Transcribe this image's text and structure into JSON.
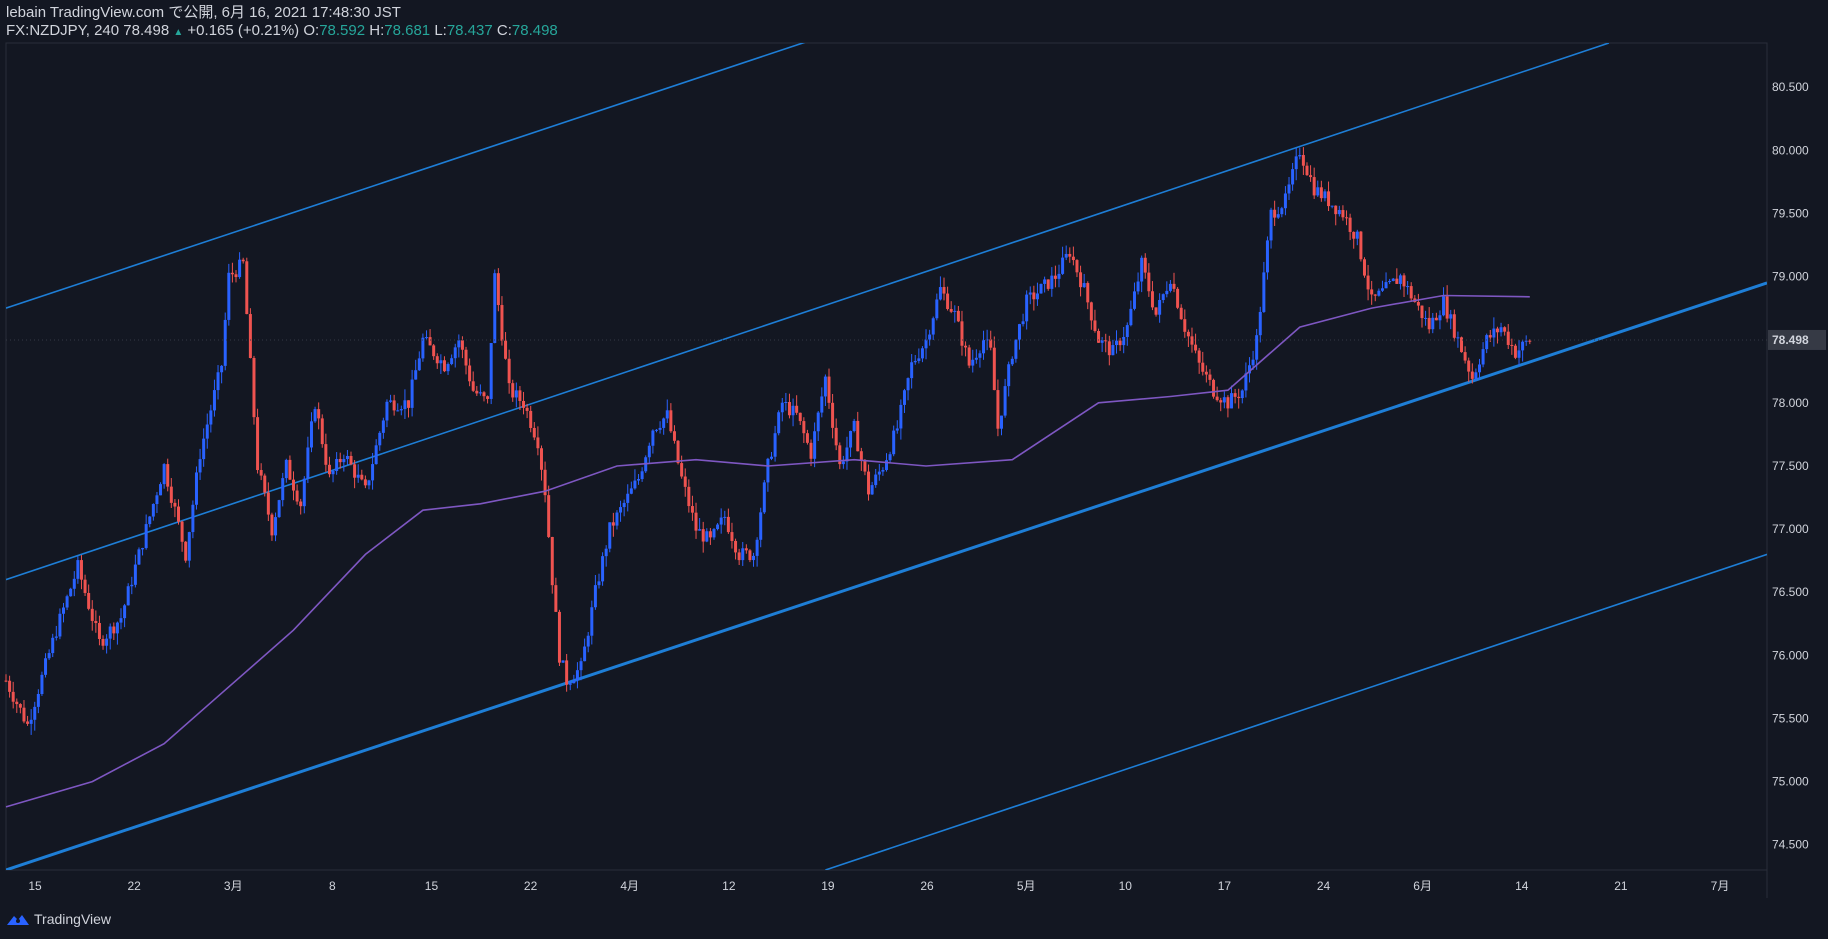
{
  "header": {
    "line1": "lebain TradingView.com で公開, 6月 16, 2021 17:48:30 JST",
    "symbol": "FX:NZDJPY, 240",
    "last": "78.498",
    "change_arrow": "▲",
    "change": "+0.165 (+0.21%)",
    "o_label": "O:",
    "o_value": "78.592",
    "h_label": "H:",
    "h_value": "78.681",
    "l_label": "L:",
    "l_value": "78.437",
    "c_label": "C:",
    "c_value": "78.498"
  },
  "brand": {
    "label": "TradingView",
    "icon": "tradingview-logo-icon"
  },
  "colors": {
    "background": "#131722",
    "candle_up": "#2962ff",
    "candle_down": "#ef5350",
    "channel": "#1e7ed6",
    "moving_average": "#7e57c2",
    "price_tag": "#363a45"
  },
  "chart_data": {
    "type": "candlestick",
    "symbol": "FX:NZDJPY",
    "interval": "240",
    "y_axis": {
      "ticks": [
        "80.500",
        "80.000",
        "79.500",
        "79.000",
        "78.500",
        "78.000",
        "77.500",
        "77.000",
        "76.500",
        "76.000",
        "75.500",
        "75.000",
        "74.500"
      ],
      "range": [
        74.3,
        80.85
      ],
      "current_price_label": "78.498"
    },
    "x_axis": {
      "ticks": [
        "15",
        "22",
        "3月",
        "8",
        "15",
        "22",
        "4月",
        "12",
        "19",
        "26",
        "5月",
        "10",
        "17",
        "24",
        "6月",
        "14",
        "21",
        "7月"
      ]
    },
    "price_path": [
      [
        0,
        75.8
      ],
      [
        3,
        75.45
      ],
      [
        7,
        76.2
      ],
      [
        10,
        76.7
      ],
      [
        13,
        76.1
      ],
      [
        16,
        76.3
      ],
      [
        19,
        76.9
      ],
      [
        22,
        77.5
      ],
      [
        25,
        76.8
      ],
      [
        27,
        77.6
      ],
      [
        30,
        78.3
      ],
      [
        31,
        79.0
      ],
      [
        33,
        79.1
      ],
      [
        35,
        77.5
      ],
      [
        37,
        77.0
      ],
      [
        39,
        77.5
      ],
      [
        41,
        77.2
      ],
      [
        43,
        78.0
      ],
      [
        45,
        77.4
      ],
      [
        47,
        77.6
      ],
      [
        50,
        77.3
      ],
      [
        53,
        78.0
      ],
      [
        56,
        78.0
      ],
      [
        58,
        78.5
      ],
      [
        61,
        78.3
      ],
      [
        63,
        78.5
      ],
      [
        65,
        78.1
      ],
      [
        67,
        78.0
      ],
      [
        68,
        79.0
      ],
      [
        70,
        78.1
      ],
      [
        72,
        78.0
      ],
      [
        74,
        77.7
      ],
      [
        75,
        77.3
      ],
      [
        76,
        76.6
      ],
      [
        77,
        76.0
      ],
      [
        78,
        75.8
      ],
      [
        80,
        75.9
      ],
      [
        82,
        76.5
      ],
      [
        84,
        77.0
      ],
      [
        86,
        77.2
      ],
      [
        88,
        77.4
      ],
      [
        90,
        77.8
      ],
      [
        92,
        77.9
      ],
      [
        94,
        77.4
      ],
      [
        96,
        77.0
      ],
      [
        98,
        76.9
      ],
      [
        100,
        77.1
      ],
      [
        102,
        76.8
      ],
      [
        104,
        76.8
      ],
      [
        106,
        77.5
      ],
      [
        108,
        78.0
      ],
      [
        110,
        77.9
      ],
      [
        112,
        77.6
      ],
      [
        114,
        78.2
      ],
      [
        116,
        77.5
      ],
      [
        118,
        77.8
      ],
      [
        120,
        77.3
      ],
      [
        122,
        77.5
      ],
      [
        124,
        77.8
      ],
      [
        126,
        78.3
      ],
      [
        128,
        78.5
      ],
      [
        130,
        78.9
      ],
      [
        132,
        78.7
      ],
      [
        134,
        78.3
      ],
      [
        136,
        78.5
      ],
      [
        137,
        78.4
      ],
      [
        138,
        77.8
      ],
      [
        140,
        78.4
      ],
      [
        142,
        78.8
      ],
      [
        144,
        78.9
      ],
      [
        146,
        79.0
      ],
      [
        148,
        79.2
      ],
      [
        150,
        78.9
      ],
      [
        152,
        78.5
      ],
      [
        154,
        78.4
      ],
      [
        156,
        78.6
      ],
      [
        158,
        79.1
      ],
      [
        160,
        78.7
      ],
      [
        162,
        79.0
      ],
      [
        164,
        78.6
      ],
      [
        166,
        78.3
      ],
      [
        168,
        78.1
      ],
      [
        170,
        78.0
      ],
      [
        172,
        78.1
      ],
      [
        174,
        78.5
      ],
      [
        176,
        79.5
      ],
      [
        178,
        79.6
      ],
      [
        180,
        80.0
      ],
      [
        182,
        79.7
      ],
      [
        184,
        79.6
      ],
      [
        186,
        79.5
      ],
      [
        188,
        79.3
      ],
      [
        190,
        78.8
      ],
      [
        192,
        78.9
      ],
      [
        194,
        79.0
      ],
      [
        196,
        78.8
      ],
      [
        198,
        78.6
      ],
      [
        200,
        78.8
      ],
      [
        202,
        78.5
      ],
      [
        204,
        78.2
      ],
      [
        206,
        78.5
      ],
      [
        208,
        78.6
      ],
      [
        210,
        78.4
      ],
      [
        212,
        78.5
      ]
    ],
    "channel_lines": [
      {
        "name": "",
        "from": [
          0,
          78.75
        ],
        "to": [
          113.5,
          80.9
        ],
        "style": "thin"
      },
      {
        "name": "",
        "from": [
          0,
          76.6
        ],
        "to": [
          223,
          80.85
        ],
        "style": "thin"
      },
      {
        "name": "",
        "from": [
          0,
          74.3
        ],
        "to": [
          245,
          78.95
        ],
        "style": "thick"
      },
      {
        "name": "",
        "from": [
          114,
          74.3
        ],
        "to": [
          245,
          76.8
        ],
        "style": "thin"
      }
    ],
    "moving_average": [
      [
        0,
        74.8
      ],
      [
        12,
        75.0
      ],
      [
        22,
        75.3
      ],
      [
        30,
        75.7
      ],
      [
        40,
        76.2
      ],
      [
        50,
        76.8
      ],
      [
        58,
        77.15
      ],
      [
        66,
        77.2
      ],
      [
        75,
        77.3
      ],
      [
        85,
        77.5
      ],
      [
        96,
        77.55
      ],
      [
        106,
        77.5
      ],
      [
        118,
        77.55
      ],
      [
        128,
        77.5
      ],
      [
        140,
        77.55
      ],
      [
        152,
        78.0
      ],
      [
        162,
        78.05
      ],
      [
        170,
        78.1
      ],
      [
        180,
        78.6
      ],
      [
        190,
        78.75
      ],
      [
        200,
        78.85
      ],
      [
        212,
        78.84
      ]
    ]
  }
}
